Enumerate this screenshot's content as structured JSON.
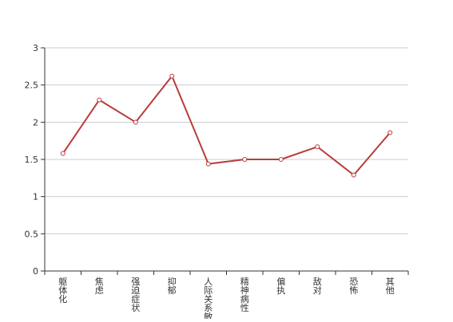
{
  "chart_data": {
    "type": "line",
    "categories": [
      "躯体化",
      "焦虑",
      "强迫症状",
      "抑郁",
      "人际关系敏感",
      "精神病性",
      "偏执",
      "敌对",
      "恐怖",
      "其他"
    ],
    "series": [
      {
        "values": [
          1.58,
          2.3,
          2.0,
          2.62,
          1.44,
          1.5,
          1.5,
          1.67,
          1.29,
          1.86
        ]
      }
    ],
    "yticks": [
      "0",
      "0.5",
      "1",
      "1.5",
      "2",
      "2.5",
      "3"
    ],
    "ylim": [
      0,
      3
    ],
    "grid": true,
    "colors": {
      "line": "#b83b3b",
      "grid": "#cccccc",
      "axis": "#333333"
    }
  }
}
